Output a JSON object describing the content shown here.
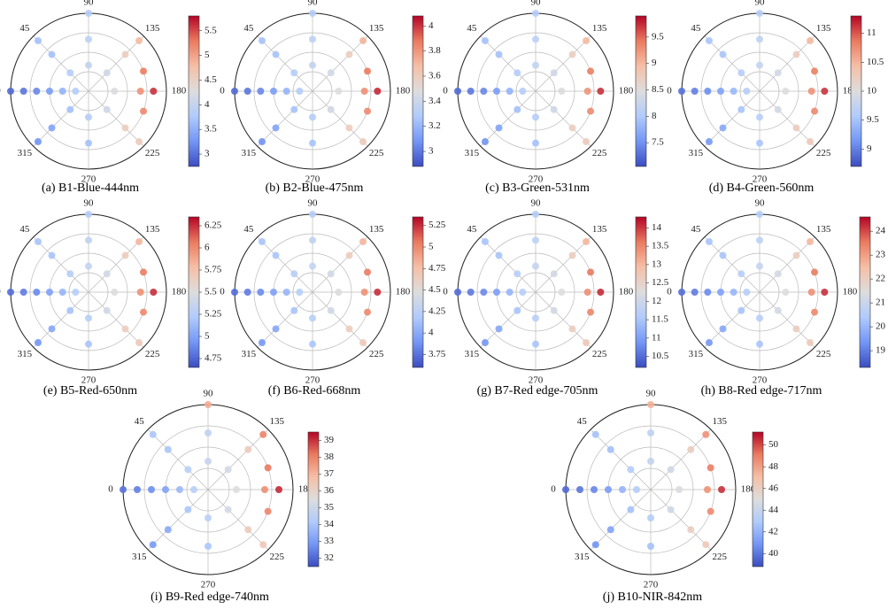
{
  "chart_data": [
    {
      "type": "polar_scatter",
      "caption": "(a) B1-Blue-444nm",
      "rlim": [
        0,
        60
      ],
      "rticks": [
        15,
        30,
        45,
        60
      ],
      "thetaticks": [
        0,
        45,
        90,
        135,
        180,
        225,
        270,
        315
      ],
      "clim": [
        2.75,
        5.8
      ],
      "cticks": [
        3,
        3.5,
        4,
        4.5,
        5,
        5.5
      ],
      "cmap": [
        "#3b4cc0",
        "#7396f5",
        "#b0cbfc",
        "#dddddd",
        "#f6bfa6",
        "#ea7b60",
        "#b40426"
      ],
      "theta": [
        0,
        0,
        0,
        0,
        0,
        0,
        90,
        90,
        90,
        135,
        135,
        135,
        160,
        180,
        180,
        180,
        200,
        225,
        225,
        225,
        270,
        270,
        315,
        315,
        315,
        45,
        45,
        45
      ],
      "r": [
        10,
        20,
        30,
        40,
        50,
        60,
        20,
        40,
        60,
        20,
        40,
        55,
        45,
        20,
        40,
        50,
        45,
        20,
        40,
        55,
        20,
        40,
        20,
        40,
        55,
        20,
        40,
        55
      ],
      "values": [
        3.82,
        3.53,
        3.32,
        3.15,
        3.03,
        2.95,
        3.96,
        3.9,
        3.82,
        4.11,
        4.54,
        4.83,
        5.27,
        4.25,
        5.12,
        5.61,
        5.18,
        4.11,
        4.54,
        4.6,
        3.82,
        3.67,
        3.67,
        3.38,
        3.24,
        3.82,
        3.67,
        3.67
      ]
    },
    {
      "type": "polar_scatter",
      "caption": "(b) B2-Blue-475nm",
      "rlim": [
        0,
        60
      ],
      "rticks": [
        15,
        30,
        45,
        60
      ],
      "thetaticks": [
        0,
        45,
        90,
        135,
        180,
        225,
        270,
        315
      ],
      "clim": [
        2.88,
        4.08
      ],
      "cticks": [
        3,
        3.2,
        3.4,
        3.6,
        3.8,
        4
      ],
      "cmap": [
        "#3b4cc0",
        "#7396f5",
        "#b0cbfc",
        "#dddddd",
        "#f6bfa6",
        "#ea7b60",
        "#b40426"
      ],
      "theta": [
        0,
        0,
        0,
        0,
        0,
        0,
        90,
        90,
        90,
        135,
        135,
        135,
        160,
        180,
        180,
        180,
        200,
        225,
        225,
        225,
        270,
        270,
        315,
        315,
        315,
        45,
        45,
        45
      ],
      "r": [
        10,
        20,
        30,
        40,
        50,
        60,
        20,
        40,
        60,
        20,
        40,
        55,
        45,
        20,
        40,
        50,
        45,
        20,
        40,
        55,
        20,
        40,
        20,
        40,
        55,
        20,
        40,
        55
      ],
      "values": [
        3.3,
        3.19,
        3.11,
        3.04,
        2.99,
        2.96,
        3.36,
        3.34,
        3.3,
        3.42,
        3.59,
        3.71,
        3.88,
        3.48,
        3.82,
        4.02,
        3.84,
        3.42,
        3.59,
        3.61,
        3.3,
        3.25,
        3.25,
        3.13,
        3.07,
        3.3,
        3.25,
        3.25
      ]
    },
    {
      "type": "polar_scatter",
      "caption": "(c) B3-Green-531nm",
      "rlim": [
        0,
        60
      ],
      "rticks": [
        15,
        30,
        45,
        60
      ],
      "thetaticks": [
        0,
        45,
        90,
        135,
        180,
        225,
        270,
        315
      ],
      "clim": [
        7.05,
        9.9
      ],
      "cticks": [
        7.5,
        8,
        8.5,
        9,
        9.5
      ],
      "cmap": [
        "#3b4cc0",
        "#7396f5",
        "#b0cbfc",
        "#dddddd",
        "#f6bfa6",
        "#ea7b60",
        "#b40426"
      ],
      "theta": [
        0,
        0,
        0,
        0,
        0,
        0,
        90,
        90,
        90,
        135,
        135,
        135,
        160,
        180,
        180,
        180,
        200,
        225,
        225,
        225,
        270,
        270,
        315,
        315,
        315,
        45,
        45,
        45
      ],
      "r": [
        10,
        20,
        30,
        40,
        50,
        60,
        20,
        40,
        60,
        20,
        40,
        55,
        45,
        20,
        40,
        50,
        45,
        20,
        40,
        55,
        20,
        40,
        20,
        40,
        55,
        20,
        40,
        55
      ],
      "values": [
        8.05,
        7.78,
        7.59,
        7.42,
        7.32,
        7.24,
        8.18,
        8.13,
        8.05,
        8.32,
        8.72,
        8.99,
        9.4,
        8.45,
        9.26,
        9.72,
        9.31,
        8.32,
        8.72,
        8.77,
        8.05,
        7.91,
        7.91,
        7.64,
        7.51,
        8.05,
        7.91,
        7.91
      ]
    },
    {
      "type": "polar_scatter",
      "caption": "(d) B4-Green-560nm",
      "rlim": [
        0,
        60
      ],
      "rticks": [
        15,
        30,
        45,
        60
      ],
      "thetaticks": [
        0,
        45,
        90,
        135,
        180,
        225,
        270,
        315
      ],
      "clim": [
        8.7,
        11.3
      ],
      "cticks": [
        9,
        9.5,
        10,
        10.5,
        11
      ],
      "cmap": [
        "#3b4cc0",
        "#7396f5",
        "#b0cbfc",
        "#dddddd",
        "#f6bfa6",
        "#ea7b60",
        "#b40426"
      ],
      "theta": [
        0,
        0,
        0,
        0,
        0,
        0,
        90,
        90,
        90,
        135,
        135,
        135,
        160,
        180,
        180,
        180,
        200,
        225,
        225,
        225,
        270,
        270,
        315,
        315,
        315,
        45,
        45,
        45
      ],
      "r": [
        10,
        20,
        30,
        40,
        50,
        60,
        20,
        40,
        60,
        20,
        40,
        55,
        45,
        20,
        40,
        50,
        45,
        20,
        40,
        55,
        20,
        40,
        20,
        40,
        55,
        20,
        40,
        55
      ],
      "values": [
        9.64,
        9.4,
        9.23,
        9.09,
        8.99,
        8.92,
        9.76,
        9.71,
        9.64,
        9.88,
        10.24,
        10.48,
        10.84,
        10.0,
        10.72,
        11.13,
        10.77,
        9.88,
        10.24,
        10.29,
        9.64,
        9.52,
        9.52,
        9.28,
        9.16,
        9.64,
        9.52,
        9.52
      ]
    },
    {
      "type": "polar_scatter",
      "caption": "(e) B5-Red-650nm",
      "rlim": [
        0,
        60
      ],
      "rticks": [
        15,
        30,
        45,
        60
      ],
      "thetaticks": [
        0,
        45,
        90,
        135,
        180,
        225,
        270,
        315
      ],
      "clim": [
        4.65,
        6.35
      ],
      "cticks": [
        4.75,
        5,
        5.25,
        5.5,
        5.75,
        6,
        6.25
      ],
      "cmap": [
        "#3b4cc0",
        "#7396f5",
        "#b0cbfc",
        "#dddddd",
        "#f6bfa6",
        "#ea7b60",
        "#b40426"
      ],
      "theta": [
        0,
        0,
        0,
        0,
        0,
        0,
        90,
        90,
        90,
        135,
        135,
        135,
        160,
        180,
        180,
        180,
        200,
        225,
        225,
        225,
        270,
        270,
        315,
        315,
        315,
        45,
        45,
        45
      ],
      "r": [
        10,
        20,
        30,
        40,
        50,
        60,
        20,
        40,
        60,
        20,
        40,
        55,
        45,
        20,
        40,
        50,
        45,
        20,
        40,
        55,
        20,
        40,
        20,
        40,
        55,
        20,
        40,
        55
      ],
      "values": [
        5.26,
        5.1,
        4.99,
        4.89,
        4.83,
        4.78,
        5.34,
        5.31,
        5.26,
        5.42,
        5.66,
        5.82,
        6.06,
        5.5,
        5.98,
        6.25,
        6.01,
        5.42,
        5.66,
        5.69,
        5.26,
        5.18,
        5.18,
        5.02,
        4.94,
        5.26,
        5.18,
        5.18
      ]
    },
    {
      "type": "polar_scatter",
      "caption": "(f) B6-Red-668nm",
      "rlim": [
        0,
        60
      ],
      "rticks": [
        15,
        30,
        45,
        60
      ],
      "thetaticks": [
        0,
        45,
        90,
        135,
        180,
        225,
        270,
        315
      ],
      "clim": [
        3.6,
        5.35
      ],
      "cticks": [
        3.75,
        4,
        4.25,
        4.5,
        4.75,
        5,
        5.25
      ],
      "cmap": [
        "#3b4cc0",
        "#7396f5",
        "#b0cbfc",
        "#dddddd",
        "#f6bfa6",
        "#ea7b60",
        "#b40426"
      ],
      "theta": [
        0,
        0,
        0,
        0,
        0,
        0,
        90,
        90,
        90,
        135,
        135,
        135,
        160,
        180,
        180,
        180,
        200,
        225,
        225,
        225,
        270,
        270,
        315,
        315,
        315,
        45,
        45,
        45
      ],
      "r": [
        10,
        20,
        30,
        40,
        50,
        60,
        20,
        40,
        60,
        20,
        40,
        55,
        45,
        20,
        40,
        50,
        45,
        20,
        40,
        55,
        20,
        40,
        20,
        40,
        55,
        20,
        40,
        55
      ],
      "values": [
        4.23,
        4.06,
        3.95,
        3.85,
        3.78,
        3.73,
        4.31,
        4.28,
        4.23,
        4.39,
        4.64,
        4.81,
        5.05,
        4.48,
        4.97,
        5.25,
        5.0,
        4.39,
        4.64,
        4.67,
        4.23,
        4.15,
        4.15,
        3.98,
        3.9,
        4.23,
        4.15,
        4.15
      ]
    },
    {
      "type": "polar_scatter",
      "caption": "(g) B7-Red edge-705nm",
      "rlim": [
        0,
        60
      ],
      "rticks": [
        15,
        30,
        45,
        60
      ],
      "thetaticks": [
        0,
        45,
        90,
        135,
        180,
        225,
        270,
        315
      ],
      "clim": [
        10.2,
        14.3
      ],
      "cticks": [
        10.5,
        11,
        11.5,
        12,
        12.5,
        13,
        13.5,
        14
      ],
      "cmap": [
        "#3b4cc0",
        "#7396f5",
        "#b0cbfc",
        "#dddddd",
        "#f6bfa6",
        "#ea7b60",
        "#b40426"
      ],
      "theta": [
        0,
        0,
        0,
        0,
        0,
        0,
        90,
        90,
        90,
        135,
        135,
        135,
        160,
        180,
        180,
        180,
        200,
        225,
        225,
        225,
        270,
        270,
        315,
        315,
        315,
        45,
        45,
        45
      ],
      "r": [
        10,
        20,
        30,
        40,
        50,
        60,
        20,
        40,
        60,
        20,
        40,
        55,
        45,
        20,
        40,
        50,
        45,
        20,
        40,
        55,
        20,
        40,
        20,
        40,
        55,
        20,
        40,
        55
      ],
      "values": [
        11.67,
        11.28,
        11.0,
        10.77,
        10.61,
        10.5,
        11.86,
        11.78,
        11.67,
        12.06,
        12.64,
        13.03,
        13.62,
        12.25,
        13.42,
        14.08,
        13.5,
        12.06,
        12.64,
        12.72,
        11.67,
        11.47,
        11.47,
        11.08,
        10.89,
        11.67,
        11.47,
        11.47
      ]
    },
    {
      "type": "polar_scatter",
      "caption": "(h) B8-Red edge-717nm",
      "rlim": [
        0,
        60
      ],
      "rticks": [
        15,
        30,
        45,
        60
      ],
      "thetaticks": [
        0,
        45,
        90,
        135,
        180,
        225,
        270,
        315
      ],
      "clim": [
        18.3,
        24.6
      ],
      "cticks": [
        19,
        20,
        21,
        22,
        23,
        24
      ],
      "cmap": [
        "#3b4cc0",
        "#7396f5",
        "#b0cbfc",
        "#dddddd",
        "#f6bfa6",
        "#ea7b60",
        "#b40426"
      ],
      "theta": [
        0,
        0,
        0,
        0,
        0,
        0,
        90,
        90,
        90,
        135,
        135,
        135,
        160,
        180,
        180,
        180,
        200,
        225,
        225,
        225,
        270,
        270,
        315,
        315,
        315,
        45,
        45,
        45
      ],
      "r": [
        10,
        20,
        30,
        40,
        50,
        60,
        20,
        40,
        60,
        20,
        40,
        55,
        45,
        20,
        40,
        50,
        45,
        20,
        40,
        55,
        20,
        40,
        20,
        40,
        55,
        20,
        40,
        55
      ],
      "values": [
        20.57,
        19.98,
        19.56,
        19.21,
        18.97,
        18.8,
        20.86,
        20.74,
        20.57,
        21.16,
        22.04,
        22.63,
        23.52,
        21.45,
        23.22,
        24.22,
        23.34,
        21.16,
        22.04,
        22.16,
        20.57,
        20.27,
        20.27,
        19.68,
        19.39,
        20.57,
        20.27,
        20.27
      ]
    },
    {
      "type": "polar_scatter",
      "caption": "(i) B9-Red edge-740nm",
      "rlim": [
        0,
        60
      ],
      "rticks": [
        15,
        30,
        45,
        60
      ],
      "thetaticks": [
        0,
        45,
        90,
        135,
        180,
        225,
        270,
        315
      ],
      "clim": [
        31.5,
        39.5
      ],
      "cticks": [
        32,
        33,
        34,
        35,
        36,
        37,
        38,
        39
      ],
      "cmap": [
        "#3b4cc0",
        "#7396f5",
        "#b0cbfc",
        "#dddddd",
        "#f6bfa6",
        "#ea7b60",
        "#b40426"
      ],
      "theta": [
        0,
        0,
        0,
        0,
        0,
        0,
        90,
        90,
        90,
        135,
        135,
        135,
        160,
        180,
        180,
        180,
        200,
        225,
        225,
        225,
        270,
        270,
        315,
        315,
        315,
        45,
        45,
        45
      ],
      "r": [
        10,
        20,
        30,
        40,
        50,
        60,
        20,
        40,
        60,
        20,
        40,
        55,
        45,
        20,
        40,
        50,
        45,
        20,
        40,
        55,
        20,
        40,
        20,
        40,
        55,
        20,
        40,
        55
      ],
      "values": [
        34.43,
        33.68,
        33.15,
        32.7,
        32.4,
        32.18,
        34.8,
        34.65,
        37.2,
        35.18,
        36.3,
        38.0,
        38.18,
        35.55,
        37.8,
        39.08,
        37.95,
        35.18,
        36.3,
        36.45,
        34.43,
        34.05,
        34.05,
        33.3,
        32.93,
        34.43,
        34.05,
        34.05
      ]
    },
    {
      "type": "polar_scatter",
      "caption": "(j) B10-NIR-842nm",
      "rlim": [
        0,
        60
      ],
      "rticks": [
        15,
        30,
        45,
        60
      ],
      "thetaticks": [
        0,
        45,
        90,
        135,
        180,
        225,
        270,
        315
      ],
      "clim": [
        38.8,
        51.2
      ],
      "cticks": [
        40,
        42,
        44,
        46,
        48,
        50
      ],
      "cmap": [
        "#3b4cc0",
        "#7396f5",
        "#b0cbfc",
        "#dddddd",
        "#f6bfa6",
        "#ea7b60",
        "#b40426"
      ],
      "theta": [
        0,
        0,
        0,
        0,
        0,
        0,
        90,
        90,
        90,
        135,
        135,
        135,
        160,
        180,
        180,
        180,
        200,
        225,
        225,
        225,
        270,
        270,
        315,
        315,
        315,
        45,
        45,
        45
      ],
      "r": [
        10,
        20,
        30,
        40,
        50,
        60,
        20,
        40,
        60,
        20,
        40,
        55,
        45,
        20,
        40,
        50,
        45,
        20,
        40,
        55,
        20,
        40,
        20,
        40,
        55,
        20,
        40,
        55
      ],
      "values": [
        43.13,
        41.95,
        41.12,
        40.42,
        39.94,
        39.59,
        43.72,
        43.48,
        47.5,
        44.31,
        46.08,
        48.5,
        49.03,
        44.9,
        48.44,
        50.45,
        48.68,
        44.31,
        46.08,
        46.32,
        43.13,
        42.54,
        42.54,
        41.36,
        40.77,
        43.13,
        42.54,
        42.54
      ]
    }
  ]
}
